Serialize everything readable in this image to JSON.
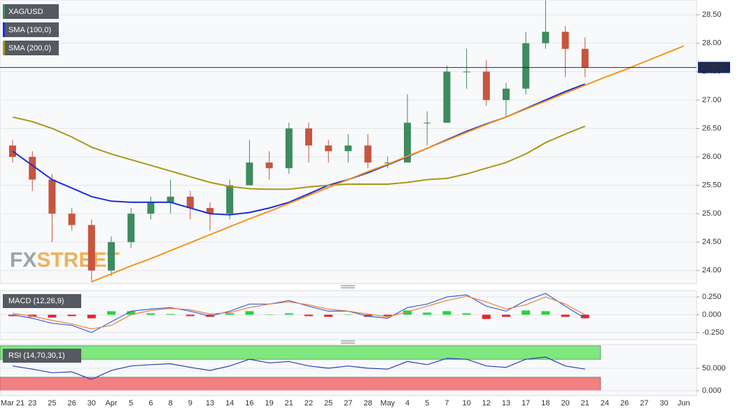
{
  "chart_data": [
    {
      "type": "candlestick",
      "name": "XAG/USD",
      "up_color": "#3d8b5e",
      "down_color": "#c7553f",
      "categories": [
        "Mar 21",
        "23",
        "25",
        "26",
        "30",
        "Apr",
        "5",
        "6",
        "8",
        "9",
        "13",
        "14",
        "16",
        "19",
        "21",
        "22",
        "25",
        "27",
        "28",
        "May",
        "4",
        "5",
        "7",
        "10",
        "12",
        "13",
        "17",
        "18",
        "20",
        "21",
        "24",
        "26",
        "27",
        "30",
        "Jun"
      ],
      "open": [
        26.2,
        26.0,
        25.6,
        25.0,
        24.8,
        24.0,
        24.5,
        25.0,
        25.2,
        25.3,
        25.1,
        25.0,
        25.5,
        25.9,
        25.8,
        26.5,
        26.2,
        26.1,
        26.2,
        25.9,
        25.9,
        26.6,
        26.6,
        27.5,
        27.5,
        27.0,
        27.2,
        28.0,
        28.2,
        27.9,
        null,
        null,
        null,
        null,
        null
      ],
      "high": [
        26.3,
        26.1,
        25.7,
        25.1,
        24.9,
        24.6,
        25.1,
        25.3,
        25.6,
        25.4,
        25.2,
        25.6,
        26.3,
        26.1,
        26.6,
        26.6,
        26.3,
        26.4,
        26.4,
        26.0,
        27.1,
        26.8,
        27.6,
        27.9,
        27.7,
        27.3,
        28.2,
        28.75,
        28.3,
        28.1,
        null,
        null,
        null,
        null,
        null
      ],
      "low": [
        25.9,
        25.4,
        24.5,
        24.7,
        23.8,
        23.9,
        24.4,
        24.9,
        25.0,
        24.9,
        24.7,
        24.9,
        25.5,
        25.6,
        25.7,
        25.9,
        25.9,
        25.9,
        25.8,
        25.8,
        25.9,
        26.2,
        26.6,
        27.2,
        26.9,
        26.7,
        27.1,
        27.9,
        27.4,
        27.4,
        null,
        null,
        null,
        null,
        null
      ],
      "close": [
        26.0,
        25.6,
        25.0,
        24.8,
        24.0,
        24.5,
        25.0,
        25.2,
        25.3,
        25.1,
        25.0,
        25.5,
        25.9,
        25.8,
        26.5,
        26.2,
        26.1,
        26.2,
        25.9,
        25.9,
        26.6,
        26.6,
        27.5,
        27.5,
        27.0,
        27.2,
        28.0,
        28.2,
        27.9,
        27.573,
        null,
        null,
        null,
        null,
        null
      ],
      "series": [
        {
          "name": "SMA (100,0)",
          "color": "#1a2fd6",
          "values": [
            26.1,
            25.85,
            25.6,
            25.45,
            25.3,
            25.22,
            25.2,
            25.2,
            25.2,
            25.1,
            25.0,
            24.98,
            25.02,
            25.1,
            25.2,
            25.35,
            25.5,
            25.6,
            25.72,
            25.86,
            26.0,
            26.15,
            26.3,
            26.45,
            26.58,
            26.7,
            26.85,
            27.0,
            27.15,
            27.28,
            null,
            null,
            null,
            null,
            null
          ]
        },
        {
          "name": "SMA (200,0)",
          "color": "#a8981a",
          "values": [
            26.7,
            26.62,
            26.5,
            26.35,
            26.17,
            26.05,
            25.95,
            25.85,
            25.75,
            25.65,
            25.55,
            25.48,
            25.44,
            25.43,
            25.43,
            25.47,
            25.5,
            25.52,
            25.52,
            25.52,
            25.55,
            25.6,
            25.62,
            25.7,
            25.8,
            25.9,
            26.05,
            26.25,
            26.4,
            26.54,
            null,
            null,
            null,
            null,
            null
          ]
        },
        {
          "color": "#f7931e",
          "values": [
            null,
            null,
            null,
            null,
            23.8,
            23.94,
            24.08,
            24.21,
            24.35,
            24.49,
            24.63,
            24.77,
            24.91,
            25.04,
            25.18,
            25.32,
            25.46,
            25.6,
            25.74,
            25.87,
            26.01,
            26.15,
            26.29,
            26.43,
            26.57,
            26.7,
            26.84,
            26.98,
            27.12,
            27.26,
            27.4,
            27.53,
            27.67,
            27.81,
            27.95
          ]
        }
      ],
      "last_price": 27.573,
      "last_price_color": "#1b2a5a",
      "watermark": [
        "FX",
        "STREET"
      ],
      "ylim": [
        23.77,
        28.76
      ],
      "yticks": [
        {
          "value": 24,
          "label": "24.00"
        },
        {
          "value": 24.5,
          "label": "24.50"
        },
        {
          "value": 25,
          "label": "25.00"
        },
        {
          "value": 25.5,
          "label": "25.50"
        },
        {
          "value": 26,
          "label": "26.00"
        },
        {
          "value": 26.5,
          "label": "26.50"
        },
        {
          "value": 27,
          "label": "27.00"
        },
        {
          "value": 27.5,
          "label": "27.50"
        },
        {
          "value": 28,
          "label": "28.00"
        },
        {
          "value": 28.5,
          "label": "28.50"
        }
      ],
      "grid": true
    },
    {
      "type": "macd",
      "title": "MACD (12,26,9)",
      "positive_color": "#22d63a",
      "negative_color": "#e3242b",
      "histogram": [
        -0.02,
        -0.03,
        -0.04,
        -0.02,
        -0.05,
        0.05,
        0.05,
        0.02,
        0.01,
        -0.02,
        -0.03,
        0.02,
        0.05,
        0,
        0.02,
        -0.02,
        -0.03,
        0,
        -0.03,
        -0.02,
        0.06,
        0.03,
        0.05,
        0.02,
        -0.06,
        -0.03,
        0.06,
        0.05,
        -0.03,
        -0.05
      ],
      "series": [
        {
          "color": "#3a5fd9",
          "values": [
            0.0,
            -0.05,
            -0.12,
            -0.15,
            -0.25,
            -0.1,
            0.05,
            0.08,
            0.1,
            0.05,
            -0.02,
            0.05,
            0.15,
            0.15,
            0.2,
            0.12,
            0.05,
            0.05,
            -0.02,
            -0.05,
            0.1,
            0.15,
            0.25,
            0.28,
            0.12,
            0.05,
            0.2,
            0.3,
            0.12,
            -0.05
          ]
        },
        {
          "color": "#e8803a",
          "values": [
            0.02,
            -0.02,
            -0.08,
            -0.13,
            -0.2,
            -0.15,
            0.0,
            0.06,
            0.09,
            0.07,
            0.01,
            0.03,
            0.1,
            0.15,
            0.18,
            0.14,
            0.08,
            0.05,
            0.01,
            -0.03,
            0.04,
            0.12,
            0.2,
            0.26,
            0.18,
            0.08,
            0.14,
            0.25,
            0.15,
            0.0
          ]
        }
      ],
      "ylim": [
        -0.35,
        0.34
      ],
      "yticks": [
        {
          "value": 0.25,
          "label": "0.250"
        },
        {
          "value": 0,
          "label": "0.000"
        },
        {
          "value": -0.25,
          "label": "-0.250"
        }
      ],
      "grid": true
    },
    {
      "type": "rsi",
      "title": "RSI (14,70,30,1)",
      "bands": [
        {
          "from": 70,
          "to": 100,
          "color": "#7ee87e"
        },
        {
          "from": 0,
          "to": 30,
          "color": "#f28080"
        }
      ],
      "series": [
        {
          "color": "#2a3fb0",
          "values": [
            55,
            48,
            40,
            42,
            25,
            45,
            55,
            58,
            60,
            52,
            45,
            55,
            70,
            62,
            65,
            55,
            50,
            55,
            50,
            48,
            65,
            58,
            72,
            70,
            55,
            52,
            70,
            75,
            55,
            48
          ]
        }
      ],
      "ylim": [
        -11,
        103
      ],
      "yticks": [
        {
          "value": 50,
          "label": "50.000"
        },
        {
          "value": 0,
          "label": "0.000"
        }
      ],
      "grid": true
    }
  ]
}
